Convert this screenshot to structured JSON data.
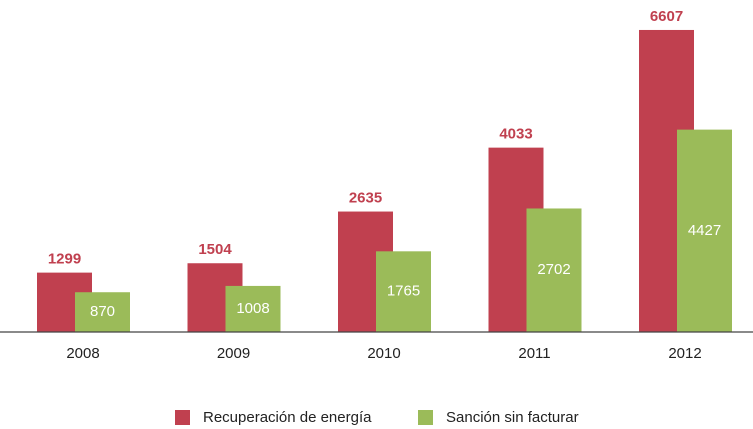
{
  "chart_data": {
    "type": "bar",
    "categories": [
      "2008",
      "2009",
      "2010",
      "2011",
      "2012"
    ],
    "series": [
      {
        "name": "Recuperación de energía",
        "color": "#c0404f",
        "values": [
          1299,
          1504,
          2635,
          4033,
          6607
        ]
      },
      {
        "name": "Sanción sin facturar",
        "color": "#9bbb59",
        "values": [
          870,
          1008,
          1765,
          2702,
          4427
        ]
      }
    ],
    "ylim": [
      0,
      7000
    ]
  }
}
